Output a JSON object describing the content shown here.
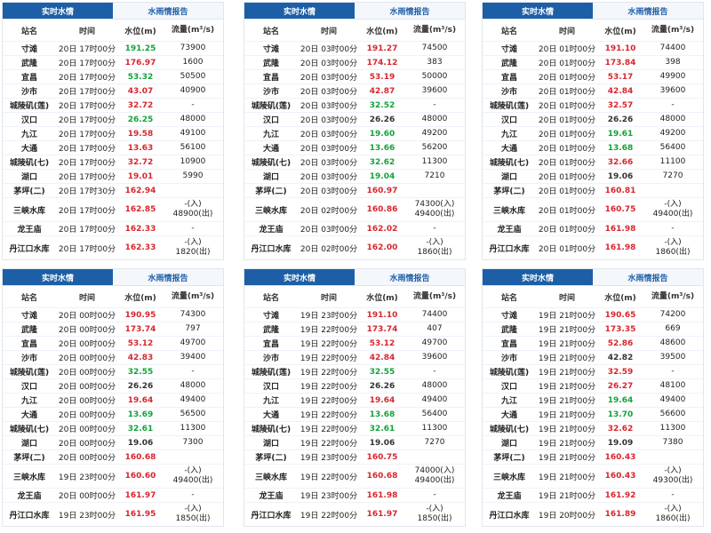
{
  "panels": [
    {
      "tabs": [
        "实时水情",
        "水雨情报告"
      ],
      "headers": [
        "站名",
        "时间",
        "水位(m)",
        "流量(m³/s)"
      ],
      "rows": [
        {
          "station": "寸滩",
          "time": "20日 17时00分",
          "level": "191.25",
          "level_color": "green",
          "flow": "73900"
        },
        {
          "station": "武隆",
          "time": "20日 17时00分",
          "level": "176.97",
          "level_color": "red",
          "flow": "1600"
        },
        {
          "station": "宜昌",
          "time": "20日 17时00分",
          "level": "53.32",
          "level_color": "green",
          "flow": "50500"
        },
        {
          "station": "沙市",
          "time": "20日 17时00分",
          "level": "43.07",
          "level_color": "red",
          "flow": "40900"
        },
        {
          "station": "城陵矶(莲)",
          "time": "20日 17时00分",
          "level": "32.72",
          "level_color": "red",
          "flow": "-"
        },
        {
          "station": "汉口",
          "time": "20日 17时00分",
          "level": "26.25",
          "level_color": "green",
          "flow": "48000"
        },
        {
          "station": "九江",
          "time": "20日 17时00分",
          "level": "19.58",
          "level_color": "red",
          "flow": "49100"
        },
        {
          "station": "大通",
          "time": "20日 17时00分",
          "level": "13.63",
          "level_color": "red",
          "flow": "56100"
        },
        {
          "station": "城陵矶(七)",
          "time": "20日 17时00分",
          "level": "32.72",
          "level_color": "red",
          "flow": "10900"
        },
        {
          "station": "湖口",
          "time": "20日 17时00分",
          "level": "19.01",
          "level_color": "red",
          "flow": "5990"
        },
        {
          "station": "茅坪(二)",
          "time": "20日 17时30分",
          "level": "162.94",
          "level_color": "red",
          "flow": ""
        },
        {
          "station": "三峡水库",
          "time": "20日 17时00分",
          "level": "162.85",
          "level_color": "red",
          "flow": "-(入)\n48900(出)"
        },
        {
          "station": "龙王庙",
          "time": "20日 17时00分",
          "level": "162.33",
          "level_color": "red",
          "flow": "-"
        },
        {
          "station": "丹江口水库",
          "time": "20日 17时00分",
          "level": "162.33",
          "level_color": "red",
          "flow": "-(入)\n1820(出)"
        }
      ]
    },
    {
      "tabs": [
        "实时水情",
        "水雨情报告"
      ],
      "headers": [
        "站名",
        "时间",
        "水位(m)",
        "流量(m³/s)"
      ],
      "rows": [
        {
          "station": "寸滩",
          "time": "20日 03时00分",
          "level": "191.27",
          "level_color": "red",
          "flow": "74500"
        },
        {
          "station": "武隆",
          "time": "20日 03时00分",
          "level": "174.12",
          "level_color": "red",
          "flow": "383"
        },
        {
          "station": "宜昌",
          "time": "20日 03时00分",
          "level": "53.19",
          "level_color": "red",
          "flow": "50000"
        },
        {
          "station": "沙市",
          "time": "20日 03时00分",
          "level": "42.87",
          "level_color": "red",
          "flow": "39600"
        },
        {
          "station": "城陵矶(莲)",
          "time": "20日 03时00分",
          "level": "32.52",
          "level_color": "green",
          "flow": "-"
        },
        {
          "station": "汉口",
          "time": "20日 03时00分",
          "level": "26.26",
          "level_color": "black",
          "flow": "48000"
        },
        {
          "station": "九江",
          "time": "20日 03时00分",
          "level": "19.60",
          "level_color": "green",
          "flow": "49200"
        },
        {
          "station": "大通",
          "time": "20日 03时00分",
          "level": "13.66",
          "level_color": "green",
          "flow": "56200"
        },
        {
          "station": "城陵矶(七)",
          "time": "20日 03时00分",
          "level": "32.62",
          "level_color": "green",
          "flow": "11300"
        },
        {
          "station": "湖口",
          "time": "20日 03时00分",
          "level": "19.04",
          "level_color": "green",
          "flow": "7210"
        },
        {
          "station": "茅坪(二)",
          "time": "20日 03时00分",
          "level": "160.97",
          "level_color": "red",
          "flow": ""
        },
        {
          "station": "三峡水库",
          "time": "20日 02时00分",
          "level": "160.86",
          "level_color": "red",
          "flow": "74300(入)\n49400(出)"
        },
        {
          "station": "龙王庙",
          "time": "20日 03时00分",
          "level": "162.02",
          "level_color": "red",
          "flow": "-"
        },
        {
          "station": "丹江口水库",
          "time": "20日 02时00分",
          "level": "162.00",
          "level_color": "red",
          "flow": "-(入)\n1860(出)"
        }
      ]
    },
    {
      "tabs": [
        "实时水情",
        "水雨情报告"
      ],
      "headers": [
        "站名",
        "时间",
        "水位(m)",
        "流量(m³/s)"
      ],
      "rows": [
        {
          "station": "寸滩",
          "time": "20日 01时00分",
          "level": "191.10",
          "level_color": "red",
          "flow": "74400"
        },
        {
          "station": "武隆",
          "time": "20日 01时00分",
          "level": "173.84",
          "level_color": "red",
          "flow": "398"
        },
        {
          "station": "宜昌",
          "time": "20日 01时00分",
          "level": "53.17",
          "level_color": "red",
          "flow": "49900"
        },
        {
          "station": "沙市",
          "time": "20日 01时00分",
          "level": "42.84",
          "level_color": "red",
          "flow": "39600"
        },
        {
          "station": "城陵矶(莲)",
          "time": "20日 01时00分",
          "level": "32.57",
          "level_color": "red",
          "flow": "-"
        },
        {
          "station": "汉口",
          "time": "20日 01时00分",
          "level": "26.26",
          "level_color": "black",
          "flow": "48000"
        },
        {
          "station": "九江",
          "time": "20日 01时00分",
          "level": "19.61",
          "level_color": "green",
          "flow": "49200"
        },
        {
          "station": "大通",
          "time": "20日 01时00分",
          "level": "13.68",
          "level_color": "green",
          "flow": "56400"
        },
        {
          "station": "城陵矶(七)",
          "time": "20日 01时00分",
          "level": "32.66",
          "level_color": "red",
          "flow": "11100"
        },
        {
          "station": "湖口",
          "time": "20日 01时00分",
          "level": "19.06",
          "level_color": "black",
          "flow": "7270"
        },
        {
          "station": "茅坪(二)",
          "time": "20日 01时00分",
          "level": "160.81",
          "level_color": "red",
          "flow": ""
        },
        {
          "station": "三峡水库",
          "time": "20日 01时00分",
          "level": "160.75",
          "level_color": "red",
          "flow": "-(入)\n49400(出)"
        },
        {
          "station": "龙王庙",
          "time": "20日 01时00分",
          "level": "161.98",
          "level_color": "red",
          "flow": "-"
        },
        {
          "station": "丹江口水库",
          "time": "20日 01时00分",
          "level": "161.98",
          "level_color": "red",
          "flow": "-(入)\n1860(出)"
        }
      ]
    },
    {
      "tabs": [
        "实时水情",
        "水雨情报告"
      ],
      "headers": [
        "站名",
        "时间",
        "水位(m)",
        "流量(m³/s)"
      ],
      "rows": [
        {
          "station": "寸滩",
          "time": "20日 00时00分",
          "level": "190.95",
          "level_color": "red",
          "flow": "74300"
        },
        {
          "station": "武隆",
          "time": "20日 00时00分",
          "level": "173.74",
          "level_color": "red",
          "flow": "797"
        },
        {
          "station": "宜昌",
          "time": "20日 00时00分",
          "level": "53.12",
          "level_color": "red",
          "flow": "49700"
        },
        {
          "station": "沙市",
          "time": "20日 00时00分",
          "level": "42.83",
          "level_color": "red",
          "flow": "39400"
        },
        {
          "station": "城陵矶(莲)",
          "time": "20日 00时00分",
          "level": "32.55",
          "level_color": "green",
          "flow": "-"
        },
        {
          "station": "汉口",
          "time": "20日 00时00分",
          "level": "26.26",
          "level_color": "black",
          "flow": "48000"
        },
        {
          "station": "九江",
          "time": "20日 00时00分",
          "level": "19.64",
          "level_color": "red",
          "flow": "49400"
        },
        {
          "station": "大通",
          "time": "20日 00时00分",
          "level": "13.69",
          "level_color": "green",
          "flow": "56500"
        },
        {
          "station": "城陵矶(七)",
          "time": "20日 00时00分",
          "level": "32.61",
          "level_color": "green",
          "flow": "11300"
        },
        {
          "station": "湖口",
          "time": "20日 00时00分",
          "level": "19.06",
          "level_color": "black",
          "flow": "7300"
        },
        {
          "station": "茅坪(二)",
          "time": "20日 00时00分",
          "level": "160.68",
          "level_color": "red",
          "flow": ""
        },
        {
          "station": "三峡水库",
          "time": "19日 23时00分",
          "level": "160.60",
          "level_color": "red",
          "flow": "-(入)\n49400(出)"
        },
        {
          "station": "龙王庙",
          "time": "20日 00时00分",
          "level": "161.97",
          "level_color": "red",
          "flow": "-"
        },
        {
          "station": "丹江口水库",
          "time": "19日 23时00分",
          "level": "161.95",
          "level_color": "red",
          "flow": "-(入)\n1850(出)"
        }
      ]
    },
    {
      "tabs": [
        "实时水情",
        "水雨情报告"
      ],
      "headers": [
        "站名",
        "时间",
        "水位(m)",
        "流量(m³/s)"
      ],
      "rows": [
        {
          "station": "寸滩",
          "time": "19日 23时00分",
          "level": "191.10",
          "level_color": "red",
          "flow": "74400"
        },
        {
          "station": "武隆",
          "time": "19日 22时00分",
          "level": "173.74",
          "level_color": "red",
          "flow": "407"
        },
        {
          "station": "宜昌",
          "time": "19日 22时00分",
          "level": "53.12",
          "level_color": "red",
          "flow": "49700"
        },
        {
          "station": "沙市",
          "time": "19日 22时00分",
          "level": "42.84",
          "level_color": "red",
          "flow": "39600"
        },
        {
          "station": "城陵矶(莲)",
          "time": "19日 22时00分",
          "level": "32.55",
          "level_color": "green",
          "flow": "-"
        },
        {
          "station": "汉口",
          "time": "19日 22时00分",
          "level": "26.26",
          "level_color": "black",
          "flow": "48000"
        },
        {
          "station": "九江",
          "time": "19日 22时00分",
          "level": "19.64",
          "level_color": "red",
          "flow": "49400"
        },
        {
          "station": "大通",
          "time": "19日 22时00分",
          "level": "13.68",
          "level_color": "green",
          "flow": "56400"
        },
        {
          "station": "城陵矶(七)",
          "time": "19日 22时00分",
          "level": "32.61",
          "level_color": "green",
          "flow": "11300"
        },
        {
          "station": "湖口",
          "time": "19日 22时00分",
          "level": "19.06",
          "level_color": "black",
          "flow": "7270"
        },
        {
          "station": "茅坪(二)",
          "time": "19日 23时00分",
          "level": "160.75",
          "level_color": "red",
          "flow": ""
        },
        {
          "station": "三峡水库",
          "time": "19日 22时00分",
          "level": "160.68",
          "level_color": "red",
          "flow": "74000(入)\n49400(出)"
        },
        {
          "station": "龙王庙",
          "time": "19日 23时00分",
          "level": "161.98",
          "level_color": "red",
          "flow": "-"
        },
        {
          "station": "丹江口水库",
          "time": "19日 22时00分",
          "level": "161.97",
          "level_color": "red",
          "flow": "-(入)\n1850(出)"
        }
      ]
    },
    {
      "tabs": [
        "实时水情",
        "水雨情报告"
      ],
      "headers": [
        "站名",
        "时间",
        "水位(m)",
        "流量(m³/s)"
      ],
      "rows": [
        {
          "station": "寸滩",
          "time": "19日 21时00分",
          "level": "190.65",
          "level_color": "red",
          "flow": "74200"
        },
        {
          "station": "武隆",
          "time": "19日 21时00分",
          "level": "173.35",
          "level_color": "red",
          "flow": "669"
        },
        {
          "station": "宜昌",
          "time": "19日 21时00分",
          "level": "52.86",
          "level_color": "red",
          "flow": "48600"
        },
        {
          "station": "沙市",
          "time": "19日 21时00分",
          "level": "42.82",
          "level_color": "black",
          "flow": "39500"
        },
        {
          "station": "城陵矶(莲)",
          "time": "19日 21时00分",
          "level": "32.59",
          "level_color": "red",
          "flow": "-"
        },
        {
          "station": "汉口",
          "time": "19日 21时00分",
          "level": "26.27",
          "level_color": "red",
          "flow": "48100"
        },
        {
          "station": "九江",
          "time": "19日 21时00分",
          "level": "19.64",
          "level_color": "green",
          "flow": "49400"
        },
        {
          "station": "大通",
          "time": "19日 21时00分",
          "level": "13.70",
          "level_color": "green",
          "flow": "56600"
        },
        {
          "station": "城陵矶(七)",
          "time": "19日 21时00分",
          "level": "32.62",
          "level_color": "red",
          "flow": "11300"
        },
        {
          "station": "湖口",
          "time": "19日 21时00分",
          "level": "19.09",
          "level_color": "black",
          "flow": "7380"
        },
        {
          "station": "茅坪(二)",
          "time": "19日 21时00分",
          "level": "160.43",
          "level_color": "red",
          "flow": ""
        },
        {
          "station": "三峡水库",
          "time": "19日 21时00分",
          "level": "160.43",
          "level_color": "red",
          "flow": "-(入)\n49300(出)"
        },
        {
          "station": "龙王庙",
          "time": "19日 21时00分",
          "level": "161.92",
          "level_color": "red",
          "flow": "-"
        },
        {
          "station": "丹江口水库",
          "time": "19日 20时00分",
          "level": "161.89",
          "level_color": "red",
          "flow": "-(入)\n1860(出)"
        }
      ]
    }
  ]
}
